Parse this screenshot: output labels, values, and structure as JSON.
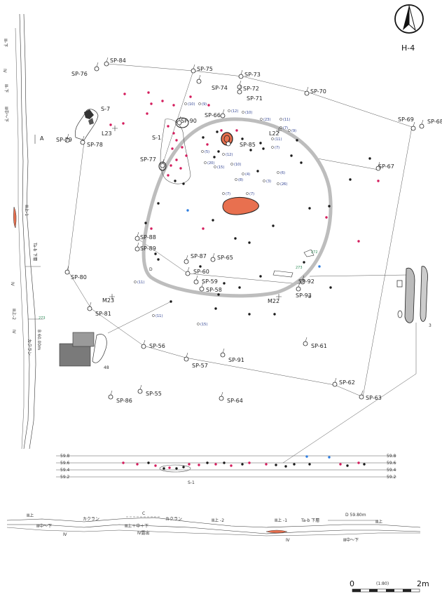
{
  "sheet_id": "H-4",
  "colors": {
    "hearth_fill": "#e8704f",
    "outline_gray": "#bdbdbd",
    "dot_red": "#d41c5c",
    "dot_black": "#1a1a1a",
    "dot_blue": "#2d7de0",
    "num_blue": "#2a3d8f",
    "num_green": "#2e8b57"
  },
  "features": [
    "S-7",
    "S-1",
    "L23",
    "L22",
    "M23",
    "M22"
  ],
  "pits": [
    {
      "label": "SP-84"
    },
    {
      "label": "SP-76"
    },
    {
      "label": "SP-75"
    },
    {
      "label": "SP-73"
    },
    {
      "label": "SP-74"
    },
    {
      "label": "SP-72"
    },
    {
      "label": "SP-71"
    },
    {
      "label": "SP-70"
    },
    {
      "label": "SP-69"
    },
    {
      "label": "SP-68"
    },
    {
      "label": "SP-66"
    },
    {
      "label": "SP-90"
    },
    {
      "label": "SP-85"
    },
    {
      "label": "SP-79"
    },
    {
      "label": "SP-78"
    },
    {
      "label": "SP-77"
    },
    {
      "label": "SP-67"
    },
    {
      "label": "SP-88"
    },
    {
      "label": "SP-89"
    },
    {
      "label": "SP-87"
    },
    {
      "label": "SP-65"
    },
    {
      "label": "SP-60"
    },
    {
      "label": "SP-59"
    },
    {
      "label": "SP-58"
    },
    {
      "label": "SP-80"
    },
    {
      "label": "SP-92"
    },
    {
      "label": "SP-93"
    },
    {
      "label": "SP-81"
    },
    {
      "label": "SP-56"
    },
    {
      "label": "SP-91"
    },
    {
      "label": "SP-61"
    },
    {
      "label": "SP-57"
    },
    {
      "label": "SP-62"
    },
    {
      "label": "SP-86"
    },
    {
      "label": "SP-55"
    },
    {
      "label": "SP-64"
    },
    {
      "label": "SP-63"
    }
  ],
  "artifact_numbers": [
    "(10)",
    "(9)",
    "(12)",
    "(10)",
    "(23)",
    "(11)",
    "(7)",
    "(9)",
    "(11)",
    "(7)",
    "(5)",
    "(12)",
    "(20)",
    "(15)",
    "(10)",
    "(4)",
    "(8)",
    "(6)",
    "(3)",
    "(26)",
    "(7)",
    "(7)",
    "(11)",
    "(11)",
    "(15)"
  ],
  "green_numbers": [
    "272",
    "273",
    "273"
  ],
  "section_marks": {
    "a": "A",
    "b": "B",
    "c": "C",
    "d": "D",
    "elev_b": "B 60.00m",
    "elev_d": "D  59.80m"
  },
  "elevation_rows": [
    "59.8",
    "59.6",
    "59.4",
    "59.2"
  ],
  "profile_s1": "S-1",
  "left_section": [
    "Ⅲ-下",
    "Ⅲ-下",
    "Ⅲ中～下",
    "Ⅳ",
    "Ⅲ上-1",
    "Ta-b 下層",
    "Ⅳ",
    "Ⅲ上-2",
    "Ⅳ",
    "カクラン"
  ],
  "bottom_section": [
    "Ⅲ上",
    "カクラン",
    "Ⅲ中～下",
    "Ⅳ",
    "Ⅲ上＋中＋下",
    "Ⅳ露出",
    "カクラン",
    "Ⅲ上 -2",
    "Ⅲ上 -1",
    "Ta-b 下層",
    "Ⅳ",
    "Ⅲ中～下",
    "Ⅲ上"
  ],
  "artifact_ids": [
    "48",
    "3"
  ],
  "scale": {
    "start": "0",
    "ratio": "(1:80)",
    "end": "2m"
  }
}
